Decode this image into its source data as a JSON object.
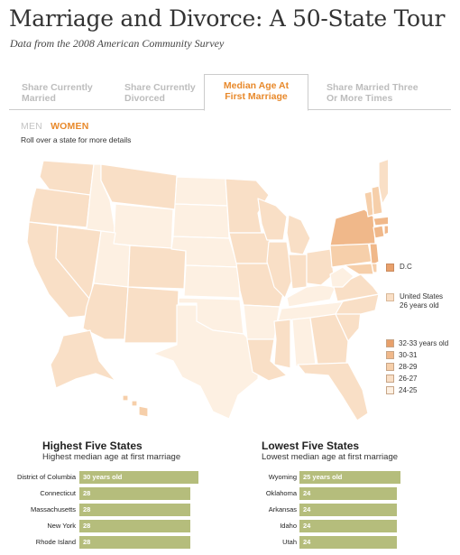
{
  "header": {
    "title": "Marriage and Divorce: A 50-State Tour",
    "subtitle": "Data from the 2008 American Community Survey"
  },
  "tabs": [
    {
      "line1": "Share Currently",
      "line2": "Married",
      "active": false
    },
    {
      "line1": "Share Currently",
      "line2": "Divorced",
      "active": false
    },
    {
      "line1": "Median Age At",
      "line2": "First Marriage",
      "active": true
    },
    {
      "line1": "Share Married Three",
      "line2": "Or More Times",
      "active": false
    }
  ],
  "gender": {
    "men": "MEN",
    "women": "WOMEN",
    "selected": "WOMEN"
  },
  "instructions": "Roll over a state for more details",
  "map": {
    "dc_label": "D.C",
    "us_label_line1": "United States",
    "us_label_line2": "26 years old",
    "legend": [
      {
        "label": "32-33 years old",
        "color": "#e8a06b"
      },
      {
        "label": "30-31",
        "color": "#f0b88a"
      },
      {
        "label": "28-29",
        "color": "#f6cfaa"
      },
      {
        "label": "26-27",
        "color": "#f9dfc6"
      },
      {
        "label": "24-25",
        "color": "#fdf0e2"
      }
    ],
    "colors": {
      "c24": "#fdf0e2",
      "c26": "#f9dfc6",
      "c28": "#f6cfaa",
      "c30": "#f0b88a",
      "c32": "#e8a06b",
      "border": "#ffffff"
    }
  },
  "highest": {
    "title": "Highest Five States",
    "subtitle": "Highest median age at first marriage",
    "items": [
      {
        "state": "District of Columbia",
        "label": "30 years old",
        "value": 30
      },
      {
        "state": "Connecticut",
        "label": "28",
        "value": 28
      },
      {
        "state": "Massachusetts",
        "label": "28",
        "value": 28
      },
      {
        "state": "New York",
        "label": "28",
        "value": 28
      },
      {
        "state": "Rhode Island",
        "label": "28",
        "value": 28
      }
    ]
  },
  "lowest": {
    "title": "Lowest Five States",
    "subtitle": "Lowest median age at first marriage",
    "items": [
      {
        "state": "Wyoming",
        "label": "25 years old",
        "value": 25
      },
      {
        "state": "Oklahoma",
        "label": "24",
        "value": 24
      },
      {
        "state": "Arkansas",
        "label": "24",
        "value": 24
      },
      {
        "state": "Idaho",
        "label": "24",
        "value": 24
      },
      {
        "state": "Utah",
        "label": "24",
        "value": 24
      }
    ]
  }
}
